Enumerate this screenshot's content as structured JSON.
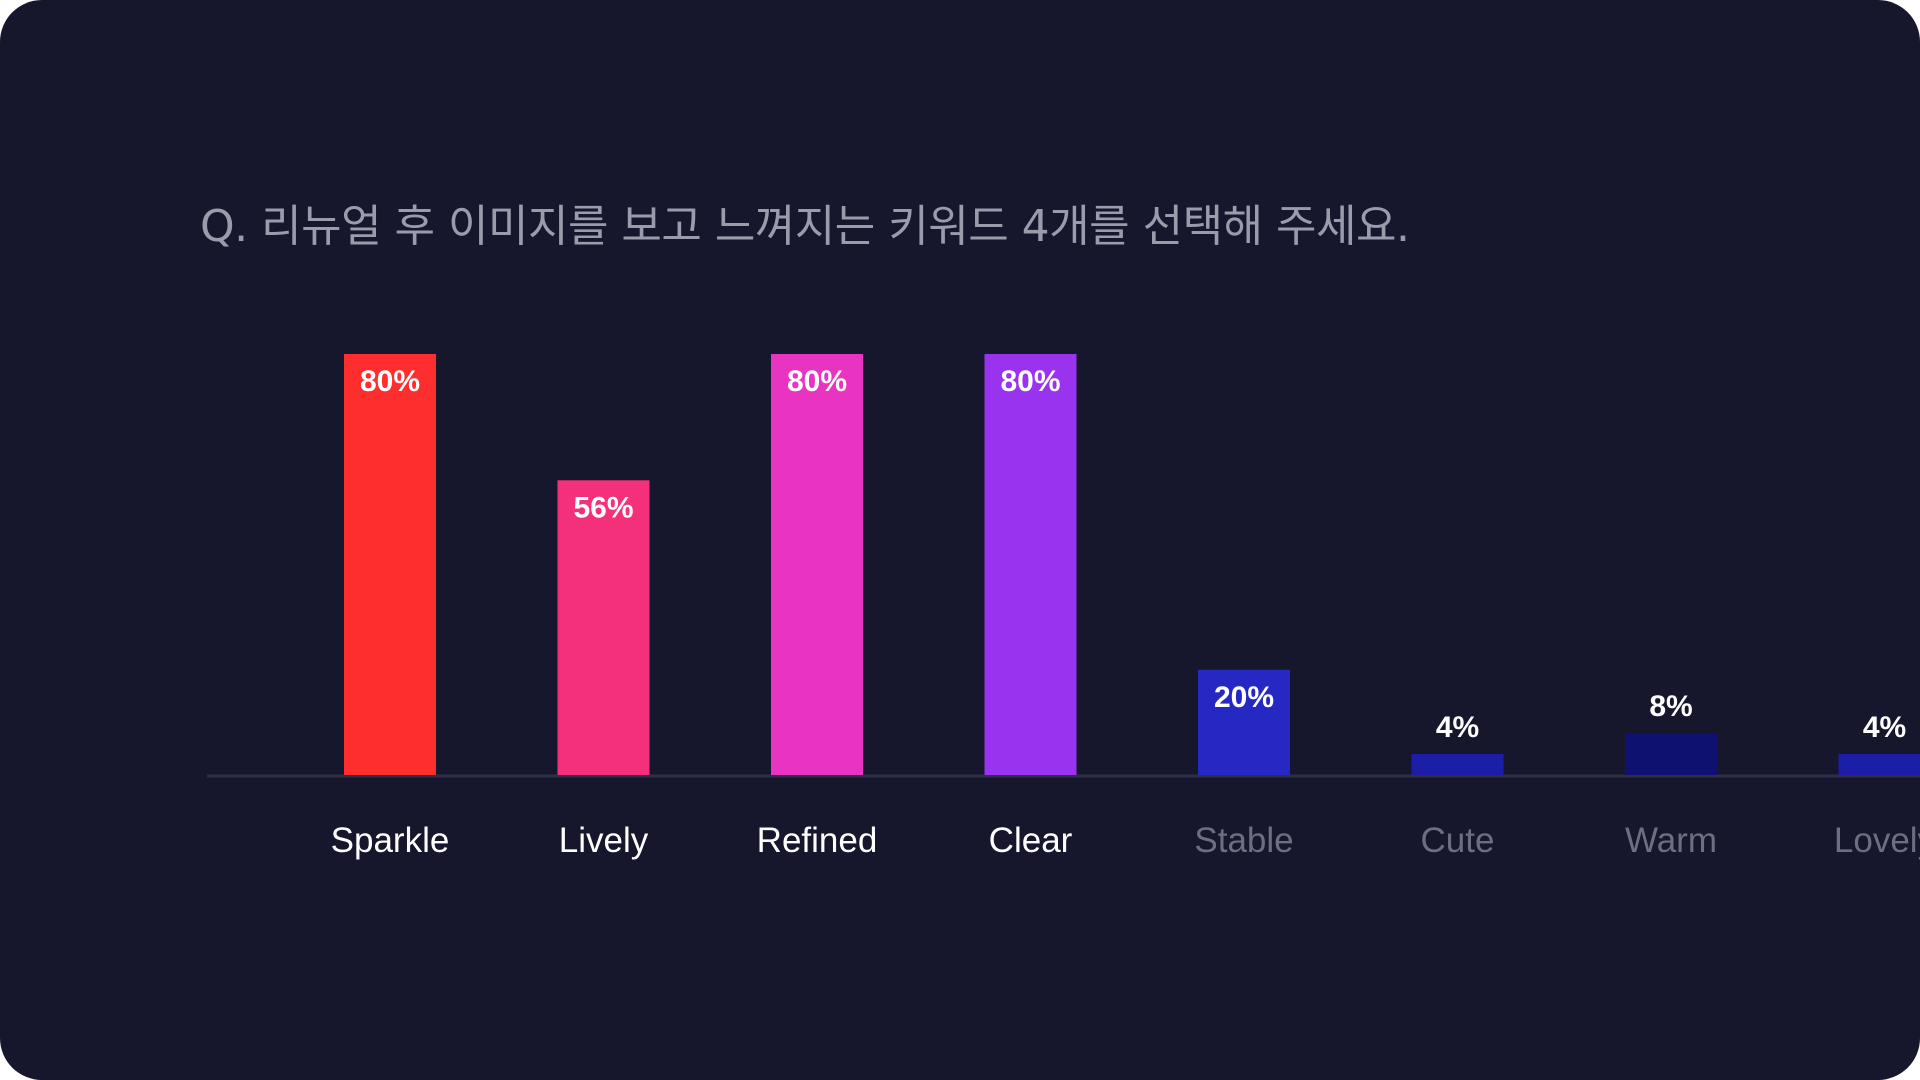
{
  "question": "Q. 리뉴얼 후 이미지를 보고 느껴지는 키워드 4개를 선택해 주세요.",
  "chart_data": {
    "type": "bar",
    "title": "Q. 리뉴얼 후 이미지를 보고 느껴지는 키워드 4개를 선택해 주세요.",
    "categories": [
      "Sparkle",
      "Lively",
      "Refined",
      "Clear",
      "Stable",
      "Cute",
      "Warm",
      "Lovely"
    ],
    "values": [
      80,
      56,
      80,
      80,
      20,
      4,
      8,
      4
    ],
    "value_labels": [
      "80%",
      "56%",
      "80%",
      "80%",
      "20%",
      "4%",
      "8%",
      "4%"
    ],
    "unit": "%",
    "ylim": [
      0,
      80
    ],
    "grid": false,
    "legend": "none",
    "bar_colors": [
      "#ff2e2e",
      "#f5307a",
      "#e834c0",
      "#9a33f0",
      "#2528c2",
      "#1d1ea8",
      "#0f1170",
      "#1d1ea8"
    ],
    "category_label_colors": [
      "#ffffff",
      "#ffffff",
      "#ffffff",
      "#ffffff",
      "#6d6f80",
      "#6d6f80",
      "#6d6f80",
      "#6d6f80"
    ],
    "baseline_color": "#2c3046"
  }
}
